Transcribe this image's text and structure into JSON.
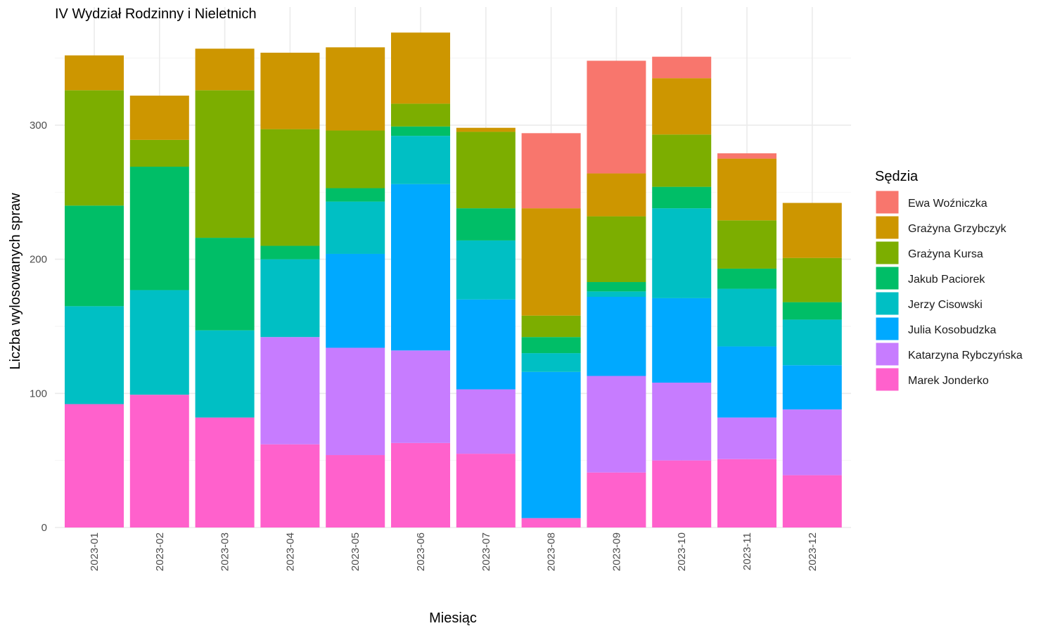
{
  "chart_data": {
    "type": "bar",
    "stacked": true,
    "title": "IV Wydział Rodzinny i Nieletnich",
    "xlabel": "Miesiąc",
    "ylabel": "Liczba wylosowanych spraw",
    "ylim": [
      0,
      370
    ],
    "yticks": [
      0,
      100,
      200,
      300
    ],
    "grid": true,
    "legend_title": "Sędzia",
    "legend_position": "right",
    "categories": [
      "2023-01",
      "2023-02",
      "2023-03",
      "2023-04",
      "2023-05",
      "2023-06",
      "2023-07",
      "2023-08",
      "2023-09",
      "2023-10",
      "2023-11",
      "2023-12"
    ],
    "series": [
      {
        "name": "Marek Jonderko",
        "color": "#FF61CC",
        "values": [
          92,
          99,
          82,
          62,
          54,
          63,
          55,
          7,
          41,
          50,
          51,
          39
        ]
      },
      {
        "name": "Katarzyna Rybczyńska",
        "color": "#C77CFF",
        "values": [
          0,
          0,
          0,
          80,
          80,
          69,
          48,
          0,
          72,
          58,
          31,
          49
        ]
      },
      {
        "name": "Julia Kosobudzka",
        "color": "#00A9FF",
        "values": [
          0,
          0,
          0,
          0,
          70,
          124,
          67,
          109,
          59,
          63,
          53,
          33
        ]
      },
      {
        "name": "Jerzy Cisowski",
        "color": "#00BFC4",
        "values": [
          73,
          78,
          65,
          58,
          39,
          36,
          44,
          14,
          4,
          67,
          43,
          34
        ]
      },
      {
        "name": "Jakub Paciorek",
        "color": "#00BE67",
        "values": [
          75,
          92,
          69,
          10,
          10,
          7,
          24,
          12,
          7,
          16,
          15,
          13
        ]
      },
      {
        "name": "Grażyna Kursa",
        "color": "#7CAE00",
        "values": [
          86,
          20,
          110,
          87,
          43,
          17,
          57,
          16,
          49,
          39,
          36,
          33
        ]
      },
      {
        "name": "Grażyna Grzybczyk",
        "color": "#CD9600",
        "values": [
          26,
          33,
          31,
          57,
          62,
          53,
          3,
          80,
          32,
          42,
          46,
          41
        ]
      },
      {
        "name": "Ewa Woźniczka",
        "color": "#F8766D",
        "values": [
          0,
          0,
          0,
          0,
          0,
          0,
          0,
          56,
          84,
          16,
          4,
          0
        ]
      }
    ],
    "legend_order": [
      "Ewa Woźniczka",
      "Grażyna Grzybczyk",
      "Grażyna Kursa",
      "Jakub Paciorek",
      "Jerzy Cisowski",
      "Julia Kosobudzka",
      "Katarzyna Rybczyńska",
      "Marek Jonderko"
    ]
  }
}
